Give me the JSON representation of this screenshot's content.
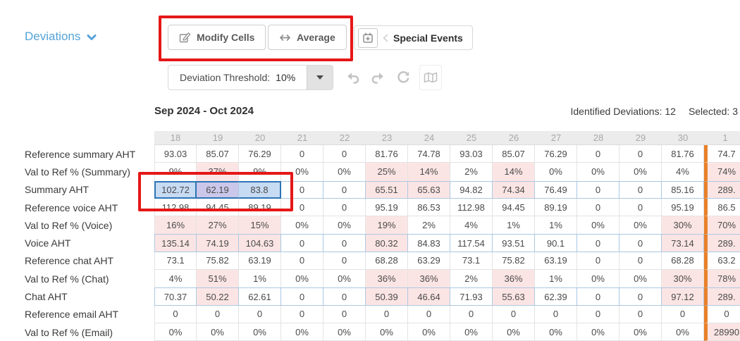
{
  "page": {
    "view_selector": "Deviations"
  },
  "toolbar": {
    "modify_cells_label": "Modify Cells",
    "average_label": "Average",
    "special_events_label": "Special Events",
    "threshold_label": "Deviation Threshold:",
    "threshold_value": "10%"
  },
  "header": {
    "date_range": "Sep 2024 - Oct 2024",
    "identified_label": "Identified Deviations:",
    "identified_value": "12",
    "selected_label": "Selected:",
    "selected_value": "3"
  },
  "icons": {
    "chevron_down": "chevron-down-icon",
    "edit": "edit-cells-icon",
    "left_right_arrow": "average-arrows-icon",
    "calendar_plus": "calendar-plus-icon",
    "chevron_left": "chevron-left-icon",
    "caret_down": "caret-down-icon",
    "undo": "undo-icon",
    "redo": "redo-icon",
    "refresh": "refresh-icon",
    "map": "map-icon"
  },
  "colors": {
    "accent_blue": "#54a3d8",
    "annotation_red": "#e51717",
    "deviation_pink": "#fbe5e4",
    "selection_blue_fill": "#c7dbf3",
    "selection_pink_blend": "#cac7ea",
    "selection_border_blue": "#2e74b5",
    "month_divider_orange": "#e8812b",
    "header_gray": "#ececec"
  },
  "table": {
    "columns": [
      "18",
      "19",
      "20",
      "21",
      "22",
      "23",
      "24",
      "25",
      "26",
      "27",
      "28",
      "29",
      "30",
      "1"
    ],
    "rows": [
      {
        "label": "Reference summary AHT",
        "type": "ref",
        "values": [
          "93.03",
          "85.07",
          "76.29",
          "0",
          "0",
          "81.76",
          "74.78",
          "93.03",
          "85.07",
          "76.29",
          "0",
          "0",
          "81.76",
          "74.7"
        ],
        "pink": []
      },
      {
        "label": "Val to Ref % (Summary)",
        "type": "pct",
        "values": [
          "9%",
          "37%",
          "9%",
          "0%",
          "0%",
          "25%",
          "14%",
          "2%",
          "14%",
          "0%",
          "0%",
          "0%",
          "4%",
          "74%"
        ],
        "pink": [
          1,
          5,
          6,
          8,
          13
        ]
      },
      {
        "label": "Summary AHT",
        "type": "aht",
        "values": [
          "102.72",
          "62.19",
          "83.8",
          "0",
          "0",
          "65.51",
          "65.63",
          "94.82",
          "74.34",
          "76.49",
          "0",
          "0",
          "85.16",
          "289."
        ],
        "pink": [
          1,
          5,
          6,
          8,
          13
        ],
        "selected": [
          0,
          1,
          2
        ]
      },
      {
        "label": "Reference voice AHT",
        "type": "ref",
        "values": [
          "112.98",
          "94.45",
          "89.19",
          "0",
          "0",
          "95.19",
          "86.53",
          "112.98",
          "94.45",
          "89.19",
          "0",
          "0",
          "95.19",
          "86.5"
        ],
        "pink": []
      },
      {
        "label": "Val to Ref % (Voice)",
        "type": "pct",
        "values": [
          "16%",
          "27%",
          "15%",
          "0%",
          "0%",
          "19%",
          "2%",
          "4%",
          "1%",
          "1%",
          "0%",
          "0%",
          "30%",
          "70%"
        ],
        "pink": [
          0,
          1,
          2,
          5,
          12,
          13
        ]
      },
      {
        "label": "Voice AHT",
        "type": "aht",
        "values": [
          "135.14",
          "74.19",
          "104.63",
          "0",
          "0",
          "80.32",
          "84.83",
          "117.54",
          "93.51",
          "90.1",
          "0",
          "0",
          "73.14",
          "289."
        ],
        "pink": [
          0,
          1,
          2,
          5,
          12,
          13
        ]
      },
      {
        "label": "Reference chat AHT",
        "type": "ref",
        "values": [
          "73.1",
          "75.82",
          "63.19",
          "0",
          "0",
          "68.28",
          "63.29",
          "73.1",
          "75.82",
          "63.19",
          "0",
          "0",
          "68.28",
          "63.2"
        ],
        "pink": []
      },
      {
        "label": "Val to Ref % (Chat)",
        "type": "pct",
        "values": [
          "4%",
          "51%",
          "1%",
          "0%",
          "0%",
          "36%",
          "36%",
          "2%",
          "36%",
          "1%",
          "0%",
          "0%",
          "30%",
          "78%"
        ],
        "pink": [
          1,
          5,
          6,
          8,
          12,
          13
        ]
      },
      {
        "label": "Chat AHT",
        "type": "aht",
        "values": [
          "70.37",
          "50.22",
          "62.61",
          "0",
          "0",
          "50.39",
          "46.64",
          "71.93",
          "55.63",
          "62.39",
          "0",
          "0",
          "97.12",
          "289."
        ],
        "pink": [
          1,
          5,
          6,
          8,
          12,
          13
        ]
      },
      {
        "label": "Reference email AHT",
        "type": "ref",
        "values": [
          "0",
          "0",
          "0",
          "0",
          "0",
          "0",
          "0",
          "0",
          "0",
          "0",
          "0",
          "0",
          "0",
          "0"
        ],
        "pink": []
      },
      {
        "label": "Val to Ref % (Email)",
        "type": "pct",
        "values": [
          "0%",
          "0%",
          "0%",
          "0%",
          "0%",
          "0%",
          "0%",
          "0%",
          "0%",
          "0%",
          "0%",
          "0%",
          "0%",
          "28990"
        ],
        "pink": [
          13
        ]
      }
    ]
  }
}
